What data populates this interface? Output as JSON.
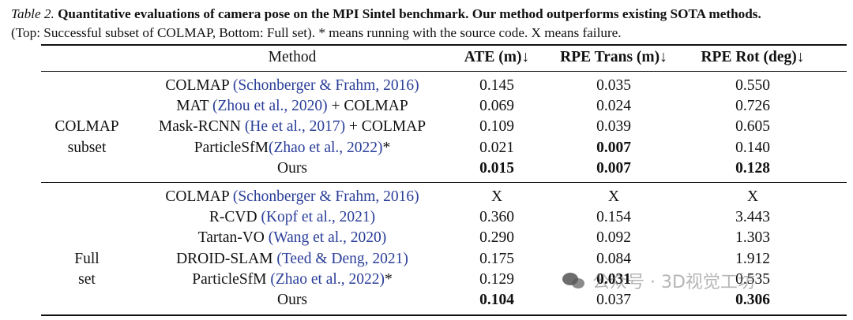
{
  "caption": {
    "label": "Table 2.",
    "title": "Quantitative evaluations of camera pose on the MPI Sintel benchmark. Our method outperforms existing SOTA methods.",
    "line2": "(Top: Successful subset of COLMAP, Bottom: Full set). * means running with the source code. X means failure."
  },
  "header": {
    "method": "Method",
    "ate": "ATE (m)↓",
    "rpe_trans": "RPE Trans (m)↓",
    "rpe_rot": "RPE Rot (deg)↓"
  },
  "groups": [
    {
      "label_line1": "COLMAP",
      "label_line2": "subset",
      "rows": [
        {
          "name": "COLMAP ",
          "cite": "(Schonberger & Frahm, 2016)",
          "suffix": "",
          "ate": "0.145",
          "rpe_trans": "0.035",
          "rpe_rot": "0.550"
        },
        {
          "name": "MAT ",
          "cite": "(Zhou et al., 2020)",
          "suffix": " + COLMAP",
          "ate": "0.069",
          "rpe_trans": "0.024",
          "rpe_rot": "0.726"
        },
        {
          "name": "Mask-RCNN ",
          "cite": "(He et al., 2017)",
          "suffix": " + COLMAP",
          "ate": "0.109",
          "rpe_trans": "0.039",
          "rpe_rot": "0.605"
        },
        {
          "name": "ParticleSfM",
          "cite": "(Zhao et al., 2022)",
          "suffix": "*",
          "ate": "0.021",
          "rpe_trans": "0.007",
          "rpe_rot": "0.140"
        },
        {
          "name": "Ours",
          "cite": "",
          "suffix": "",
          "ate": "0.015",
          "rpe_trans": "0.007",
          "rpe_rot": "0.128"
        }
      ]
    },
    {
      "label_line1": "Full",
      "label_line2": "set",
      "rows": [
        {
          "name": "COLMAP ",
          "cite": "(Schonberger & Frahm, 2016)",
          "suffix": "",
          "ate": "X",
          "rpe_trans": "X",
          "rpe_rot": "X"
        },
        {
          "name": "R-CVD ",
          "cite": "(Kopf et al., 2021)",
          "suffix": "",
          "ate": "0.360",
          "rpe_trans": "0.154",
          "rpe_rot": "3.443"
        },
        {
          "name": "Tartan-VO ",
          "cite": "(Wang et al., 2020)",
          "suffix": "",
          "ate": "0.290",
          "rpe_trans": "0.092",
          "rpe_rot": "1.303"
        },
        {
          "name": "DROID-SLAM ",
          "cite": "(Teed & Deng, 2021)",
          "suffix": "",
          "ate": "0.175",
          "rpe_trans": "0.084",
          "rpe_rot": "1.912"
        },
        {
          "name": "ParticleSfM ",
          "cite": "(Zhao et al., 2022)",
          "suffix": "*",
          "ate": "0.129",
          "rpe_trans": "0.031",
          "rpe_rot": "0.535"
        },
        {
          "name": "Ours",
          "cite": "",
          "suffix": "",
          "ate": "0.104",
          "rpe_trans": "0.037",
          "rpe_rot": "0.306"
        }
      ]
    }
  ],
  "watermark": "公众号 · 3D视觉工坊"
}
